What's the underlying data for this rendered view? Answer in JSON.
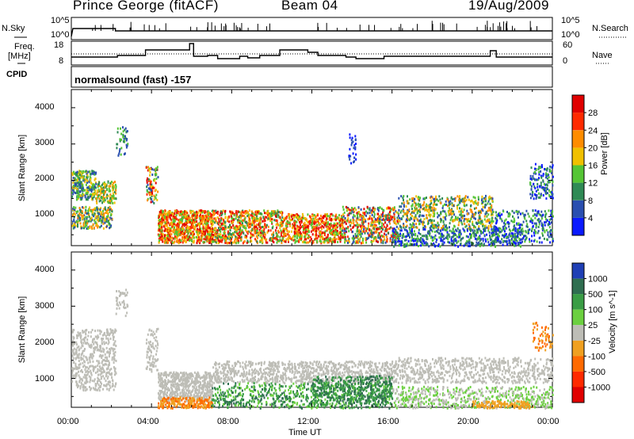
{
  "header": {
    "station": "Prince George (fitACF)",
    "beam": "Beam 04",
    "date": "19/Aug/2009"
  },
  "top_panels": {
    "nsky_label": "N.Sky",
    "nsearch_label": "N.Search",
    "freq_label_1": "Freq.",
    "freq_label_2": "[MHz]",
    "nave_label": "Nave",
    "cpid_label": "CPID",
    "cpid_text": "normalsound (fast) -157",
    "nsky_ticks": [
      "10^5",
      "10^0"
    ],
    "nsearch_ticks": [
      "10^5",
      "10^0"
    ],
    "freq_ticks": [
      "18",
      "8"
    ],
    "nave_ticks": [
      "60",
      "0"
    ]
  },
  "chart_data": [
    {
      "type": "heatmap",
      "name": "power-panel",
      "ylabel": "Slant Range [km]",
      "yticks": [
        "1000",
        "2000",
        "3000",
        "4000"
      ],
      "ylim": [
        200,
        4500
      ],
      "colorbar_label": "Power [dB]",
      "colorbar_ticks": [
        "4",
        "8",
        "12",
        "16",
        "20",
        "24",
        "28"
      ],
      "colorbar_colors": [
        "#0a1aff",
        "#2a4fb0",
        "#2f8a55",
        "#55c535",
        "#f0c000",
        "#ff8c00",
        "#ff2a00",
        "#e00000"
      ]
    },
    {
      "type": "heatmap",
      "name": "velocity-panel",
      "ylabel": "Slant Range [km]",
      "yticks": [
        "1000",
        "2000",
        "3000",
        "4000"
      ],
      "ylim": [
        200,
        4500
      ],
      "colorbar_label": "Velocity [m s^-1]",
      "colorbar_ticks": [
        "1000",
        "500",
        "100",
        "25",
        "-25",
        "-100",
        "-500",
        "-1000"
      ],
      "colorbar_colors": [
        "#1f3fb5",
        "#2f6e50",
        "#3a9d45",
        "#6cd040",
        "#bdbdb6",
        "#f0a020",
        "#ff6a00",
        "#ff2a00",
        "#e00000"
      ]
    }
  ],
  "xaxis": {
    "label": "Time UT",
    "ticks": [
      "00:00",
      "04:00",
      "08:00",
      "12:00",
      "16:00",
      "20:00",
      "00:00"
    ]
  }
}
